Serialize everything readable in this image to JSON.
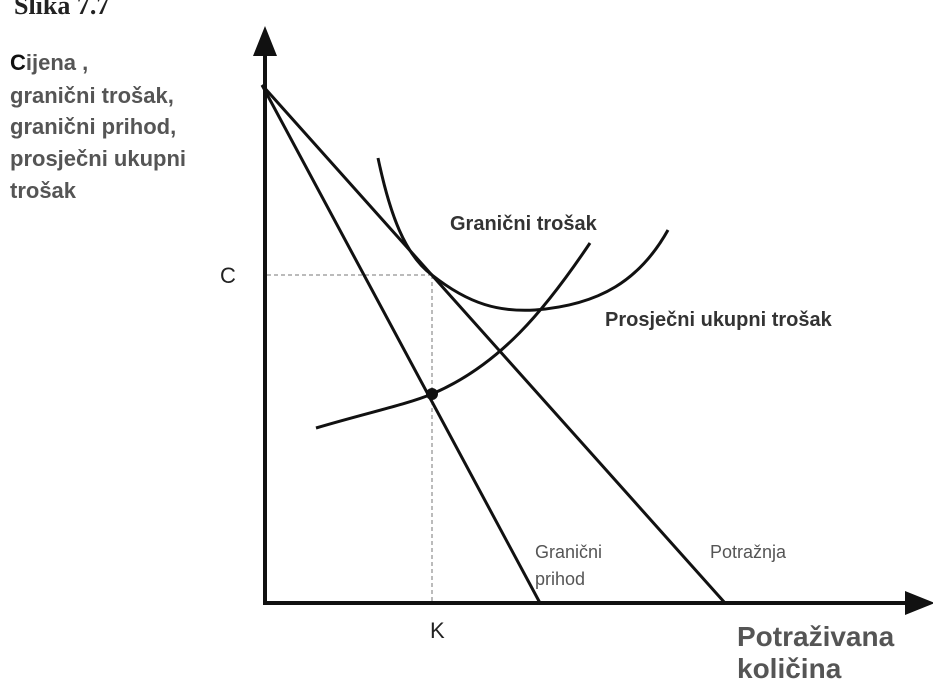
{
  "figure_label": "Slika 7.7",
  "y_axis_label": {
    "first_letter": "C",
    "lines": [
      "ijena ,",
      "granični trošak,",
      "granični prihod,",
      "prosječni ukupni",
      "trošak"
    ]
  },
  "x_axis_label": {
    "lines": [
      "Potraživana",
      "količina"
    ]
  },
  "axis_marks": {
    "price": "C",
    "quantity": "K"
  },
  "curves": {
    "marginal_cost": "Granični trošak",
    "average_total_cost": "Prosječni ukupni trošak",
    "marginal_revenue": [
      "Granični",
      "prihod"
    ],
    "demand": "Potražnja"
  }
}
